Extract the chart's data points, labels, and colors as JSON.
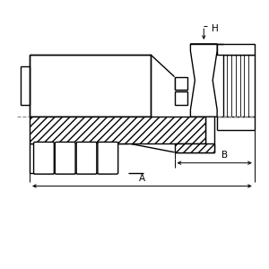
{
  "bg_color": "#ffffff",
  "line_color": "#000000",
  "fig_size": [
    3.0,
    3.0
  ],
  "dpi": 100,
  "label_A": "A",
  "label_B": "B",
  "label_H": "H",
  "lw_main": 1.0,
  "lw_thin": 0.6,
  "lw_dim": 0.7
}
